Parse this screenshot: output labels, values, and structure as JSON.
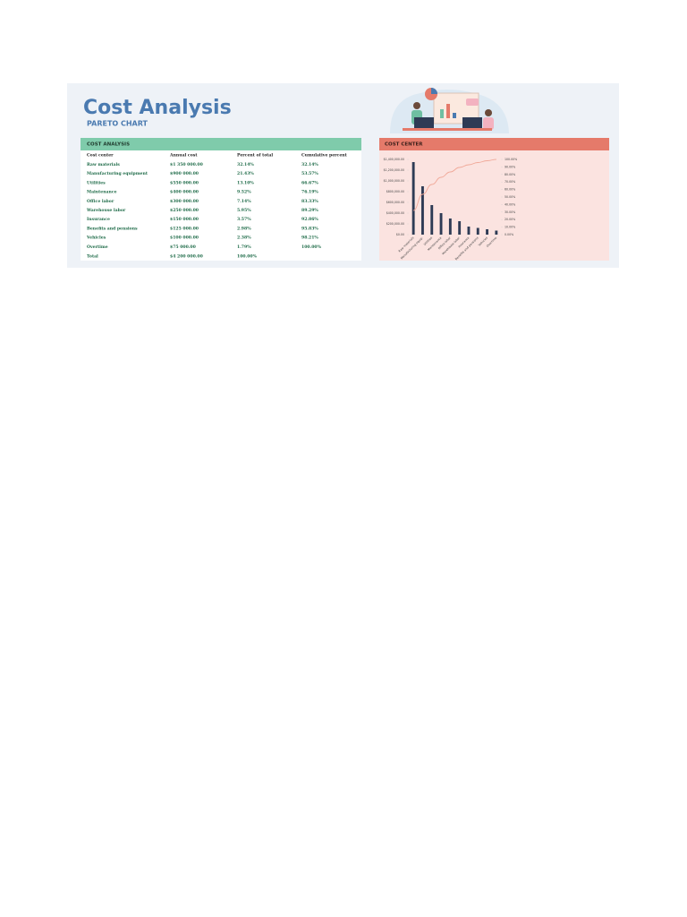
{
  "header": {
    "title": "Cost Analysis",
    "subtitle": "PARETO CHART"
  },
  "table": {
    "title": "COST ANALYSIS",
    "columns": [
      "Cost center",
      "Annual cost",
      "Percent of total",
      "Cumulative percent"
    ],
    "rows": [
      [
        "Raw materials",
        "$1 350 000.00",
        "32.14%",
        "32.14%"
      ],
      [
        "Manufacturing equipment",
        "$900 000.00",
        "21.43%",
        "53.57%"
      ],
      [
        "Utilities",
        "$550 000.00",
        "13.10%",
        "66.67%"
      ],
      [
        "Maintenance",
        "$400 000.00",
        "9.52%",
        "76.19%"
      ],
      [
        "Office labor",
        "$300 000.00",
        "7.14%",
        "83.33%"
      ],
      [
        "Warehouse labor",
        "$250 000.00",
        "5.95%",
        "89.29%"
      ],
      [
        "Insurance",
        "$150 000.00",
        "3.57%",
        "92.86%"
      ],
      [
        "Benefits and pensions",
        "$125 000.00",
        "2.98%",
        "95.83%"
      ],
      [
        "Vehicles",
        "$100 000.00",
        "2.38%",
        "98.21%"
      ],
      [
        "Overtime",
        "$75 000.00",
        "1.79%",
        "100.00%"
      ]
    ],
    "total": [
      "Total",
      "$4 200 000.00",
      "100.00%"
    ]
  },
  "chart_data": {
    "type": "bar",
    "title": "COST CENTER",
    "categories": [
      "Raw materials",
      "Manufacturing equip.",
      "Utilities",
      "Maintenance",
      "Office labor",
      "Warehouse labor",
      "Insurance",
      "Benefits and pensions",
      "Vehicles",
      "Overtime"
    ],
    "series": [
      {
        "name": "Annual cost",
        "color": "#2e3b55",
        "values": [
          1350000,
          900000,
          550000,
          400000,
          300000,
          250000,
          150000,
          125000,
          100000,
          75000
        ]
      },
      {
        "name": "Cumulative percent",
        "color": "#f0a898",
        "axis": "y2",
        "values": [
          32.14,
          53.57,
          66.67,
          76.19,
          83.33,
          89.29,
          92.86,
          95.83,
          98.21,
          100
        ]
      }
    ],
    "ylim": [
      0,
      1400000
    ],
    "yticks": [
      {
        "value": 0,
        "label": "$0.00"
      },
      {
        "value": 200000,
        "label": "$200,000.00"
      },
      {
        "value": 400000,
        "label": "$400,000.00"
      },
      {
        "value": 600000,
        "label": "$600,000.00"
      },
      {
        "value": 800000,
        "label": "$800,000.00"
      },
      {
        "value": 1000000,
        "label": "$1,000,000.00"
      },
      {
        "value": 1200000,
        "label": "$1,200,000.00"
      },
      {
        "value": 1400000,
        "label": "$1,400,000.00"
      }
    ],
    "y2lim": [
      0,
      100
    ],
    "y2ticks": [
      {
        "value": 0,
        "label": "0.00%"
      },
      {
        "value": 10,
        "label": "10.00%"
      },
      {
        "value": 20,
        "label": "20.00%"
      },
      {
        "value": 30,
        "label": "30.00%"
      },
      {
        "value": 40,
        "label": "40.00%"
      },
      {
        "value": 50,
        "label": "50.00%"
      },
      {
        "value": 60,
        "label": "60.00%"
      },
      {
        "value": 70,
        "label": "70.00%"
      },
      {
        "value": 80,
        "label": "80.00%"
      },
      {
        "value": 90,
        "label": "90.00%"
      },
      {
        "value": 100,
        "label": "100.00%"
      }
    ]
  }
}
